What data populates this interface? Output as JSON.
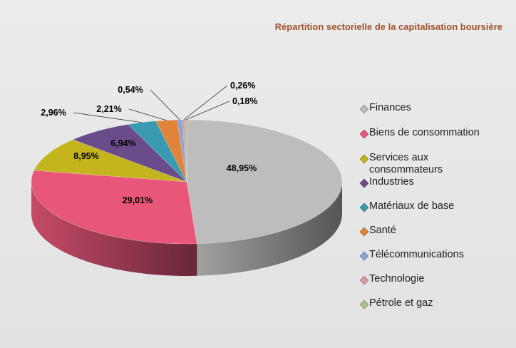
{
  "title": "Répartition sectorielle de la capitalisation boursière",
  "chart_data": {
    "type": "pie",
    "title": "Répartition sectorielle de la capitalisation boursière",
    "legend_position": "right",
    "slices": [
      {
        "label": "Finances",
        "value": 48.95,
        "display": "48,95%",
        "color": "#bdbdbd"
      },
      {
        "label": "Biens de consommation",
        "value": 29.01,
        "display": "29,01%",
        "color": "#e8577a"
      },
      {
        "label": "Services aux consommateurs",
        "value": 8.95,
        "display": "8,95%",
        "color": "#c4b41e"
      },
      {
        "label": "Industries",
        "value": 6.94,
        "display": "6,94%",
        "color": "#6b4c8a"
      },
      {
        "label": "Matériaux de base",
        "value": 2.96,
        "display": "2,96%",
        "color": "#3a9bb0"
      },
      {
        "label": "Santé",
        "value": 2.21,
        "display": "2,21%",
        "color": "#e0843a"
      },
      {
        "label": "Télécommunications",
        "value": 0.54,
        "display": "0,54%",
        "color": "#8ea3d6"
      },
      {
        "label": "Technologie",
        "value": 0.26,
        "display": "0,26%",
        "color": "#d99aa0"
      },
      {
        "label": "Pétrole et gaz",
        "value": 0.18,
        "display": "0,18%",
        "color": "#a8c48a"
      }
    ]
  }
}
